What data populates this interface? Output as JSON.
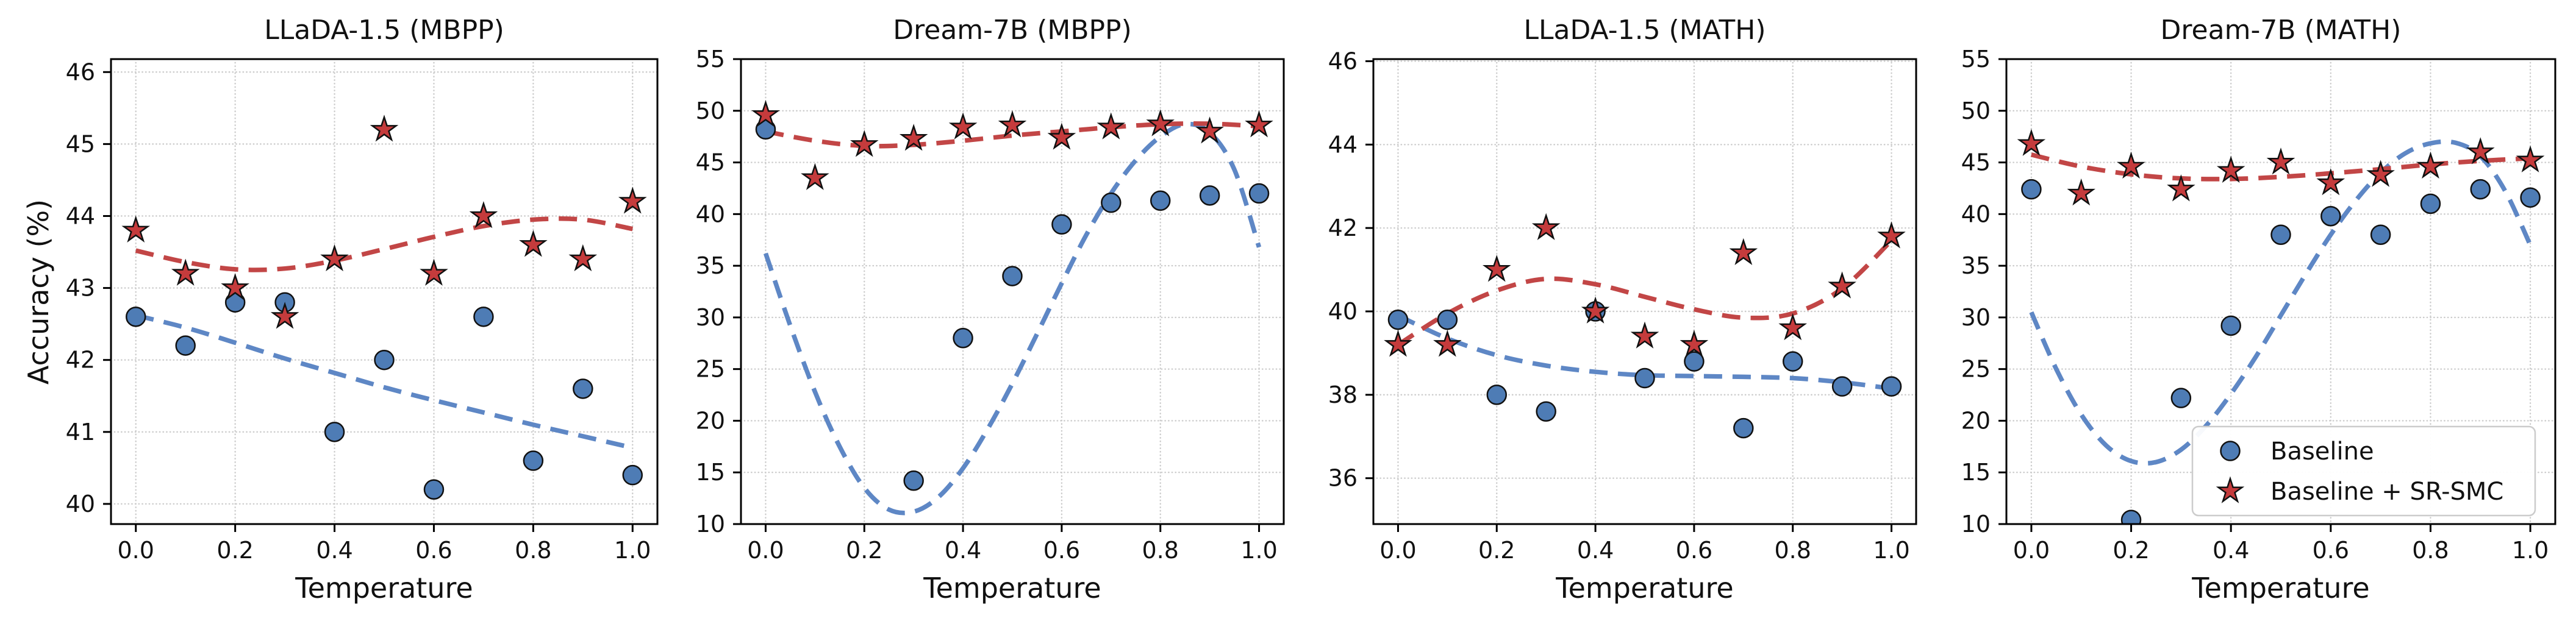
{
  "figure": {
    "ylabel": "Accuracy (%)",
    "background": "#ffffff",
    "colors": {
      "baseline_marker": "#4E7CB5",
      "baseline_line": "#5E87C5",
      "srsmc_marker": "#C53B3C",
      "srsmc_line": "#C24646",
      "marker_edge": "#111111",
      "grid": "#cccccc",
      "spine": "#000000",
      "text": "#111111",
      "legend_border": "#cccccc",
      "legend_bg": "#ffffff"
    },
    "legend": {
      "items": [
        {
          "label": "Baseline",
          "marker": "circle"
        },
        {
          "label": "Baseline + SR-SMC",
          "marker": "star"
        }
      ],
      "location": "lower right of fourth panel"
    }
  },
  "chart_data": [
    {
      "type": "scatter",
      "title": "LLaDA-1.5 (MBPP)",
      "xlabel": "Temperature",
      "xlim": [
        -0.05,
        1.05
      ],
      "ylim": [
        39.72,
        46.18
      ],
      "xticks": [
        0.0,
        0.2,
        0.4,
        0.6,
        0.8,
        1.0
      ],
      "xtick_labels": [
        "0.0",
        "0.2",
        "0.4",
        "0.6",
        "0.8",
        "1.0"
      ],
      "yticks": [
        40,
        41,
        42,
        43,
        44,
        45,
        46
      ],
      "ytick_labels": [
        "40",
        "41",
        "42",
        "43",
        "44",
        "45",
        "46"
      ],
      "grid": true,
      "legend": false,
      "series": [
        {
          "name": "Baseline",
          "marker": "circle",
          "x": [
            0.0,
            0.1,
            0.2,
            0.3,
            0.4,
            0.5,
            0.6,
            0.7,
            0.8,
            0.9,
            1.0
          ],
          "y": [
            42.6,
            42.2,
            42.8,
            42.8,
            41.0,
            42.0,
            40.2,
            42.6,
            40.6,
            41.6,
            40.4
          ],
          "trend_x": [
            0.0,
            0.1,
            0.2,
            0.3,
            0.4,
            0.5,
            0.6,
            0.7,
            0.8,
            0.9,
            1.0
          ],
          "trend_y": [
            42.62,
            42.45,
            42.24,
            42.02,
            41.82,
            41.62,
            41.44,
            41.27,
            41.1,
            40.94,
            40.78
          ]
        },
        {
          "name": "Baseline + SR-SMC",
          "marker": "star",
          "x": [
            0.0,
            0.1,
            0.2,
            0.3,
            0.4,
            0.5,
            0.6,
            0.7,
            0.8,
            0.9,
            1.0
          ],
          "y": [
            43.8,
            43.2,
            43.0,
            42.6,
            43.4,
            45.2,
            43.2,
            44.0,
            43.6,
            43.4,
            44.2
          ],
          "trend_x": [
            0.0,
            0.1,
            0.2,
            0.3,
            0.4,
            0.5,
            0.6,
            0.7,
            0.8,
            0.9,
            1.0
          ],
          "trend_y": [
            43.52,
            43.36,
            43.26,
            43.27,
            43.38,
            43.54,
            43.71,
            43.86,
            43.95,
            43.95,
            43.82
          ]
        }
      ]
    },
    {
      "type": "scatter",
      "title": "Dream-7B (MBPP)",
      "xlabel": "Temperature",
      "xlim": [
        -0.05,
        1.05
      ],
      "ylim": [
        10,
        55
      ],
      "xticks": [
        0.0,
        0.2,
        0.4,
        0.6,
        0.8,
        1.0
      ],
      "xtick_labels": [
        "0.0",
        "0.2",
        "0.4",
        "0.6",
        "0.8",
        "1.0"
      ],
      "yticks": [
        10,
        15,
        20,
        25,
        30,
        35,
        40,
        45,
        50,
        55
      ],
      "ytick_labels": [
        "10",
        "15",
        "20",
        "25",
        "30",
        "35",
        "40",
        "45",
        "50",
        "55"
      ],
      "grid": true,
      "legend": false,
      "series": [
        {
          "name": "Baseline",
          "marker": "circle",
          "x": [
            0.0,
            0.3,
            0.4,
            0.5,
            0.6,
            0.7,
            0.8,
            0.9,
            1.0
          ],
          "y": [
            48.2,
            14.2,
            28.0,
            34.0,
            39.0,
            41.1,
            41.3,
            41.8,
            42.0
          ],
          "trend_x": [
            0.0,
            0.05,
            0.1,
            0.15,
            0.2,
            0.25,
            0.3,
            0.35,
            0.4,
            0.45,
            0.5,
            0.55,
            0.6,
            0.65,
            0.7,
            0.75,
            0.8,
            0.85,
            0.9,
            0.95,
            1.0
          ],
          "trend_y": [
            36.2,
            29.2,
            22.8,
            17.5,
            13.5,
            11.4,
            11.2,
            12.6,
            15.4,
            19.2,
            23.6,
            28.4,
            33.3,
            38.0,
            42.0,
            45.2,
            47.5,
            48.7,
            47.9,
            44.3,
            36.8
          ]
        },
        {
          "name": "Baseline + SR-SMC",
          "marker": "star",
          "x": [
            0.0,
            0.1,
            0.2,
            0.3,
            0.4,
            0.5,
            0.6,
            0.7,
            0.8,
            0.9,
            1.0
          ],
          "y": [
            49.6,
            43.5,
            46.7,
            47.3,
            48.4,
            48.6,
            47.4,
            48.4,
            48.7,
            48.0,
            48.6
          ],
          "trend_x": [
            0.0,
            0.1,
            0.2,
            0.3,
            0.4,
            0.5,
            0.6,
            0.7,
            0.8,
            0.9,
            1.0
          ],
          "trend_y": [
            48.0,
            47.1,
            46.6,
            46.7,
            47.1,
            47.6,
            48.0,
            48.4,
            48.7,
            48.75,
            48.5
          ]
        }
      ]
    },
    {
      "type": "scatter",
      "title": "LLaDA-1.5 (MATH)",
      "xlabel": "Temperature",
      "xlim": [
        -0.05,
        1.05
      ],
      "ylim": [
        34.9,
        46.05
      ],
      "xticks": [
        0.0,
        0.2,
        0.4,
        0.6,
        0.8,
        1.0
      ],
      "xtick_labels": [
        "0.0",
        "0.2",
        "0.4",
        "0.6",
        "0.8",
        "1.0"
      ],
      "yticks": [
        36,
        38,
        40,
        42,
        44,
        46
      ],
      "ytick_labels": [
        "36",
        "38",
        "40",
        "42",
        "44",
        "46"
      ],
      "grid": true,
      "legend": false,
      "series": [
        {
          "name": "Baseline",
          "marker": "circle",
          "x": [
            0.0,
            0.1,
            0.2,
            0.3,
            0.4,
            0.5,
            0.6,
            0.7,
            0.8,
            0.9,
            1.0
          ],
          "y": [
            39.8,
            39.8,
            38.0,
            37.6,
            40.0,
            38.4,
            38.8,
            37.2,
            38.8,
            38.2,
            38.2
          ],
          "trend_x": [
            0.0,
            0.1,
            0.2,
            0.3,
            0.4,
            0.5,
            0.6,
            0.7,
            0.8,
            0.9,
            1.0
          ],
          "trend_y": [
            39.9,
            39.35,
            38.95,
            38.7,
            38.55,
            38.47,
            38.45,
            38.43,
            38.4,
            38.3,
            38.15
          ]
        },
        {
          "name": "Baseline + SR-SMC",
          "marker": "star",
          "x": [
            0.0,
            0.1,
            0.2,
            0.3,
            0.4,
            0.5,
            0.6,
            0.7,
            0.8,
            0.9,
            1.0
          ],
          "y": [
            39.2,
            39.2,
            41.0,
            42.0,
            40.0,
            39.4,
            39.2,
            41.4,
            39.6,
            40.6,
            41.8
          ],
          "trend_x": [
            0.0,
            0.1,
            0.2,
            0.3,
            0.4,
            0.5,
            0.6,
            0.7,
            0.8,
            0.9,
            1.0
          ],
          "trend_y": [
            39.2,
            39.95,
            40.5,
            40.78,
            40.65,
            40.35,
            40.05,
            39.85,
            39.95,
            40.55,
            41.7
          ]
        }
      ]
    },
    {
      "type": "scatter",
      "title": "Dream-7B (MATH)",
      "xlabel": "Temperature",
      "xlim": [
        -0.05,
        1.05
      ],
      "ylim": [
        10,
        55
      ],
      "xticks": [
        0.0,
        0.2,
        0.4,
        0.6,
        0.8,
        1.0
      ],
      "xtick_labels": [
        "0.0",
        "0.2",
        "0.4",
        "0.6",
        "0.8",
        "1.0"
      ],
      "yticks": [
        10,
        15,
        20,
        25,
        30,
        35,
        40,
        45,
        50,
        55
      ],
      "ytick_labels": [
        "10",
        "15",
        "20",
        "25",
        "30",
        "35",
        "40",
        "45",
        "50",
        "55"
      ],
      "grid": true,
      "legend": true,
      "series": [
        {
          "name": "Baseline",
          "marker": "circle",
          "x": [
            0.0,
            0.2,
            0.3,
            0.4,
            0.5,
            0.6,
            0.7,
            0.8,
            0.9,
            1.0
          ],
          "y": [
            42.4,
            10.4,
            22.2,
            29.2,
            38.0,
            39.8,
            38.0,
            41.0,
            42.4,
            41.6
          ],
          "trend_x": [
            0.0,
            0.05,
            0.1,
            0.15,
            0.2,
            0.25,
            0.3,
            0.35,
            0.4,
            0.45,
            0.5,
            0.55,
            0.6,
            0.65,
            0.7,
            0.75,
            0.8,
            0.85,
            0.9,
            0.95,
            1.0
          ],
          "trend_y": [
            30.5,
            25.0,
            20.6,
            17.6,
            16.1,
            16.0,
            17.2,
            19.5,
            22.6,
            26.2,
            30.2,
            34.2,
            38.0,
            41.3,
            44.0,
            45.9,
            46.85,
            46.9,
            45.6,
            42.2,
            37.0
          ]
        },
        {
          "name": "Baseline + SR-SMC",
          "marker": "star",
          "x": [
            0.0,
            0.1,
            0.2,
            0.3,
            0.4,
            0.5,
            0.6,
            0.7,
            0.8,
            0.9,
            1.0
          ],
          "y": [
            46.8,
            42.0,
            44.6,
            42.4,
            44.2,
            45.0,
            43.0,
            43.8,
            44.6,
            46.0,
            45.2
          ],
          "trend_x": [
            0.0,
            0.1,
            0.2,
            0.3,
            0.4,
            0.5,
            0.6,
            0.7,
            0.8,
            0.9,
            1.0
          ],
          "trend_y": [
            45.75,
            44.6,
            43.85,
            43.45,
            43.4,
            43.6,
            43.95,
            44.35,
            44.8,
            45.15,
            45.4
          ]
        }
      ]
    }
  ]
}
